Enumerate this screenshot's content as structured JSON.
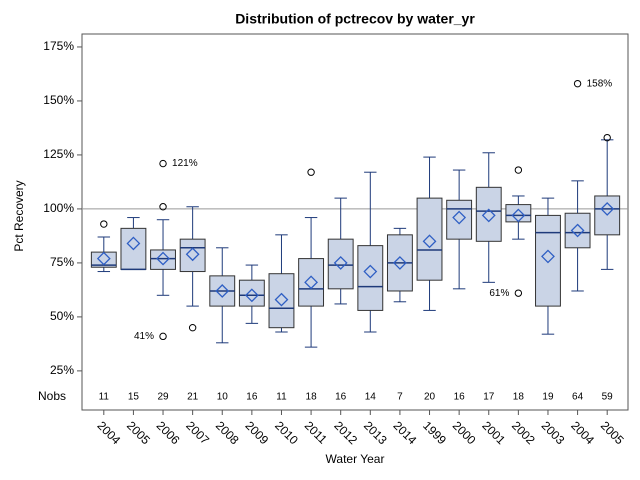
{
  "chart_data": {
    "type": "box",
    "title": "Distribution of pctrecov by water_yr",
    "x_label": "Water Year",
    "y_label": "Pct Recovery",
    "categories": [
      "2004",
      "2005",
      "2006",
      "2007",
      "2008",
      "2009",
      "2010",
      "2011",
      "2012",
      "2013",
      "2014",
      "1999",
      "2000",
      "2001",
      "2002",
      "2003",
      "2004",
      "2005"
    ],
    "min": [
      71,
      72,
      60,
      55,
      38,
      47,
      43,
      36,
      56,
      43,
      57,
      53,
      63,
      66,
      86,
      42,
      62,
      72
    ],
    "q1": [
      73,
      72,
      72,
      71,
      55,
      55,
      45,
      55,
      63,
      53,
      62,
      67,
      86,
      85,
      94,
      55,
      82,
      88
    ],
    "median": [
      74,
      72,
      77,
      82,
      62,
      60,
      54,
      63,
      74,
      64,
      75,
      81,
      100,
      99,
      97,
      89,
      89,
      100
    ],
    "q3": [
      80,
      91,
      81,
      86,
      69,
      67,
      70,
      77,
      86,
      83,
      88,
      105,
      104,
      110,
      102,
      97,
      98,
      106
    ],
    "max": [
      87,
      96,
      95,
      101,
      82,
      74,
      88,
      96,
      105,
      117,
      91,
      124,
      118,
      126,
      106,
      105,
      113,
      132
    ],
    "mean": [
      77,
      84,
      77,
      79,
      62,
      60,
      58,
      66,
      75,
      71,
      75,
      85,
      96,
      97,
      97,
      78,
      90,
      100
    ],
    "outliers": [
      [
        93
      ],
      [],
      [
        {
          "value": 121,
          "label": "121%"
        },
        101,
        {
          "value": 41,
          "label": "41%"
        }
      ],
      [
        45
      ],
      [],
      [],
      [],
      [
        117
      ],
      [],
      [],
      [],
      [],
      [],
      [],
      [
        118,
        {
          "value": 61,
          "label": "61%"
        }
      ],
      [],
      [
        {
          "value": 158,
          "label": "158%"
        }
      ],
      [
        133
      ]
    ],
    "nobs": {
      "label": "Nobs",
      "values": [
        11,
        15,
        29,
        21,
        10,
        16,
        11,
        18,
        16,
        14,
        7,
        20,
        16,
        17,
        18,
        19,
        64,
        59
      ]
    },
    "reference_line": 100,
    "ylim": [
      18,
      181
    ],
    "yticks": [
      {
        "value": 25,
        "label": "25%"
      },
      {
        "value": 50,
        "label": "50%"
      },
      {
        "value": 75,
        "label": "75%"
      },
      {
        "value": 100,
        "label": "100%"
      },
      {
        "value": 125,
        "label": "125%"
      },
      {
        "value": 150,
        "label": "150%"
      },
      {
        "value": 175,
        "label": "175%"
      }
    ],
    "box_color": "#cad4e6",
    "line_color": "#1e3a7a",
    "mean_color": "#2f5fc4"
  }
}
